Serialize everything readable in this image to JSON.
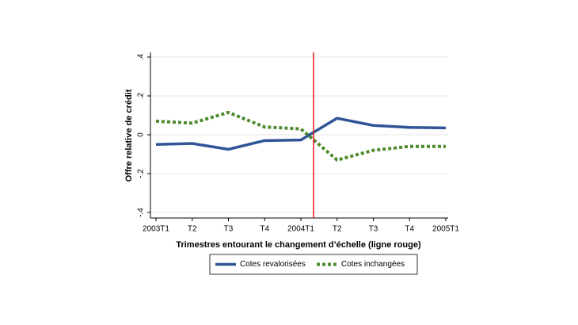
{
  "chart_data": {
    "type": "line",
    "xlabel": "Trimestres entourant le changement d’échelle (ligne rouge)",
    "ylabel": "Offre relative de crédit",
    "categories": [
      "2003T1",
      "T2",
      "T3",
      "T4",
      "2004T1",
      "T2",
      "T3",
      "T4",
      "2005T1"
    ],
    "series": [
      {
        "name": "Cotes revalorisées",
        "color": "#2f5597",
        "dash": "solid",
        "values": [
          -0.05,
          -0.045,
          -0.075,
          -0.03,
          -0.027,
          0.085,
          0.048,
          0.038,
          0.035
        ]
      },
      {
        "name": "Cotes inchangées",
        "color": "#4e8a2e",
        "dash": "dotted",
        "values": [
          0.07,
          0.06,
          0.115,
          0.04,
          0.03,
          -0.13,
          -0.08,
          -0.06,
          -0.06
        ]
      }
    ],
    "vline": {
      "x": 4.35,
      "color": "#e41a1c"
    },
    "ylim": [
      -0.4,
      0.4
    ],
    "yticks": [
      {
        "value": -0.4,
        "label": "-.4"
      },
      {
        "value": -0.2,
        "label": "-.2"
      },
      0,
      {
        "value": 0.2,
        "label": ".2"
      },
      {
        "value": 0.4,
        "label": ".4"
      }
    ],
    "grid": true,
    "legend": "bottom"
  }
}
